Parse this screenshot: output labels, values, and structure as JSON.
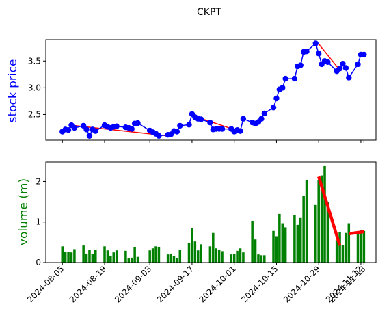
{
  "chart_data": [
    {
      "type": "line",
      "title": "CKPT",
      "ylabel": "stock price",
      "ylabel_color": "#0000ff",
      "ylim": [
        2.02,
        3.9
      ],
      "yticks": [
        2.5,
        3.0,
        3.5
      ],
      "ytick_labels": [
        "2.5",
        "3.0",
        "3.5"
      ],
      "grid": false,
      "series": [
        {
          "color": "#0000ff",
          "marker": "circle",
          "x": [
            "2024-08-05",
            "2024-08-06",
            "2024-08-07",
            "2024-08-08",
            "2024-08-09",
            "2024-08-12",
            "2024-08-13",
            "2024-08-14",
            "2024-08-15",
            "2024-08-16",
            "2024-08-19",
            "2024-08-20",
            "2024-08-21",
            "2024-08-22",
            "2024-08-23",
            "2024-08-26",
            "2024-08-27",
            "2024-08-28",
            "2024-08-29",
            "2024-08-30",
            "2024-09-03",
            "2024-09-04",
            "2024-09-05",
            "2024-09-06",
            "2024-09-09",
            "2024-09-10",
            "2024-09-11",
            "2024-09-12",
            "2024-09-13",
            "2024-09-16",
            "2024-09-17",
            "2024-09-18",
            "2024-09-19",
            "2024-09-20",
            "2024-09-23",
            "2024-09-24",
            "2024-09-25",
            "2024-09-26",
            "2024-09-27",
            "2024-09-30",
            "2024-10-01",
            "2024-10-02",
            "2024-10-03",
            "2024-10-04",
            "2024-10-07",
            "2024-10-08",
            "2024-10-09",
            "2024-10-10",
            "2024-10-11",
            "2024-10-14",
            "2024-10-15",
            "2024-10-16",
            "2024-10-17",
            "2024-10-18",
            "2024-10-21",
            "2024-10-22",
            "2024-10-23",
            "2024-10-24",
            "2024-10-25",
            "2024-10-28",
            "2024-10-29",
            "2024-10-30",
            "2024-10-31",
            "2024-11-01",
            "2024-11-04",
            "2024-11-05",
            "2024-11-06",
            "2024-11-07",
            "2024-11-08",
            "2024-11-11",
            "2024-11-12",
            "2024-11-13"
          ],
          "values": [
            2.18,
            2.22,
            2.21,
            2.3,
            2.25,
            2.29,
            2.22,
            2.1,
            2.22,
            2.19,
            2.3,
            2.27,
            2.25,
            2.27,
            2.28,
            2.26,
            2.25,
            2.23,
            2.33,
            2.34,
            2.2,
            2.17,
            2.14,
            2.1,
            2.12,
            2.13,
            2.19,
            2.18,
            2.29,
            2.31,
            2.51,
            2.45,
            2.42,
            2.41,
            2.35,
            2.22,
            2.23,
            2.23,
            2.23,
            2.23,
            2.18,
            2.21,
            2.19,
            2.42,
            2.35,
            2.33,
            2.36,
            2.42,
            2.52,
            2.63,
            2.8,
            2.97,
            3.0,
            3.17,
            3.17,
            3.4,
            3.42,
            3.67,
            3.68,
            3.83,
            3.64,
            3.44,
            3.5,
            3.48,
            3.31,
            3.36,
            3.45,
            3.37,
            3.19,
            3.44,
            3.62,
            3.62
          ]
        }
      ],
      "trend_lines": [
        {
          "color": "#ff0000",
          "x": [
            "2024-08-08",
            "2024-09-09"
          ],
          "values": [
            2.3,
            2.1
          ]
        },
        {
          "color": "#ff0000",
          "x": [
            "2024-09-16",
            "2024-10-02"
          ],
          "values": [
            2.5,
            2.2
          ]
        },
        {
          "color": "#ff0000",
          "x": [
            "2024-10-29",
            "2024-11-05"
          ],
          "values": [
            3.82,
            3.33
          ]
        }
      ]
    },
    {
      "type": "bar",
      "ylabel": "volume (m)",
      "ylabel_color": "#008000",
      "ylim": [
        0,
        2.48
      ],
      "yticks": [
        0,
        1,
        2
      ],
      "ytick_labels": [
        "0",
        "1",
        "2"
      ],
      "grid": false,
      "series": [
        {
          "color": "#008000",
          "x": [
            "2024-08-05",
            "2024-08-06",
            "2024-08-07",
            "2024-08-08",
            "2024-08-09",
            "2024-08-12",
            "2024-08-13",
            "2024-08-14",
            "2024-08-15",
            "2024-08-16",
            "2024-08-19",
            "2024-08-20",
            "2024-08-21",
            "2024-08-22",
            "2024-08-23",
            "2024-08-26",
            "2024-08-27",
            "2024-08-28",
            "2024-08-29",
            "2024-08-30",
            "2024-09-03",
            "2024-09-04",
            "2024-09-05",
            "2024-09-06",
            "2024-09-09",
            "2024-09-10",
            "2024-09-11",
            "2024-09-12",
            "2024-09-13",
            "2024-09-16",
            "2024-09-17",
            "2024-09-18",
            "2024-09-19",
            "2024-09-20",
            "2024-09-23",
            "2024-09-24",
            "2024-09-25",
            "2024-09-26",
            "2024-09-27",
            "2024-09-30",
            "2024-10-01",
            "2024-10-02",
            "2024-10-03",
            "2024-10-04",
            "2024-10-07",
            "2024-10-08",
            "2024-10-09",
            "2024-10-10",
            "2024-10-11",
            "2024-10-14",
            "2024-10-15",
            "2024-10-16",
            "2024-10-17",
            "2024-10-18",
            "2024-10-21",
            "2024-10-22",
            "2024-10-23",
            "2024-10-24",
            "2024-10-25",
            "2024-10-28",
            "2024-10-29",
            "2024-10-30",
            "2024-10-31",
            "2024-11-01",
            "2024-11-04",
            "2024-11-05",
            "2024-11-06",
            "2024-11-07",
            "2024-11-08",
            "2024-11-11",
            "2024-11-12",
            "2024-11-13"
          ],
          "values": [
            0.4,
            0.27,
            0.27,
            0.25,
            0.33,
            0.42,
            0.22,
            0.32,
            0.21,
            0.31,
            0.4,
            0.3,
            0.17,
            0.25,
            0.3,
            0.29,
            0.1,
            0.12,
            0.38,
            0.14,
            0.3,
            0.35,
            0.4,
            0.38,
            0.2,
            0.22,
            0.16,
            0.11,
            0.31,
            0.48,
            0.85,
            0.52,
            0.3,
            0.45,
            0.4,
            0.73,
            0.35,
            0.32,
            0.28,
            0.2,
            0.22,
            0.29,
            0.35,
            0.25,
            1.03,
            0.57,
            0.2,
            0.18,
            0.18,
            0.78,
            0.65,
            1.2,
            0.97,
            0.87,
            1.18,
            0.93,
            1.1,
            1.65,
            2.03,
            1.42,
            2.03,
            2.15,
            2.38,
            1.5,
            0.55,
            0.75,
            0.43,
            0.73,
            0.97,
            0.75,
            0.8,
            0.78
          ]
        }
      ],
      "trend_lines": [
        {
          "color": "#ff0000",
          "x": [
            "2024-10-29",
            "2024-11-05"
          ],
          "values": [
            2.12,
            0.42
          ]
        },
        {
          "color": "#ff0000",
          "x": [
            "2024-11-08",
            "2024-11-13"
          ],
          "values": [
            0.71,
            0.76
          ]
        }
      ]
    }
  ],
  "xaxis": {
    "tick_dates": [
      "2024-08-05",
      "2024-08-19",
      "2024-09-03",
      "2024-09-17",
      "2024-10-01",
      "2024-10-15",
      "2024-10-29",
      "2024-11-12",
      "2024-11-13"
    ],
    "tick_labels": [
      "2024-08-05",
      "2024-08-19",
      "2024-09-03",
      "2024-09-17",
      "2024-10-01",
      "2024-10-15",
      "2024-10-29",
      "2024-11-12",
      "2024-11-13"
    ]
  }
}
